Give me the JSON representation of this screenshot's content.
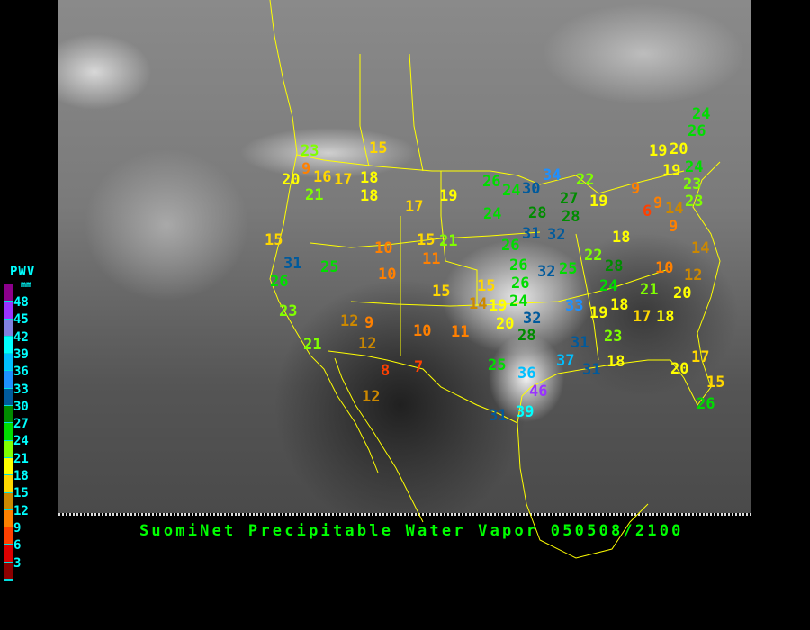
{
  "title": "SuomiNet Precipitable Water Vapor 050508/2100",
  "legend": {
    "title": "PWV",
    "unit": "mm",
    "ticks": [
      "48",
      "45",
      "42",
      "39",
      "36",
      "33",
      "30",
      "27",
      "24",
      "21",
      "18",
      "15",
      "12",
      "9",
      "6",
      "3"
    ],
    "colors_top_to_bottom": [
      "#8c008c",
      "#9933ff",
      "#8080e0",
      "#00ffff",
      "#00bfff",
      "#1e90ff",
      "#005a9c",
      "#008c00",
      "#00dd00",
      "#80ff00",
      "#ffff00",
      "#ffd700",
      "#cc8800",
      "#ff8000",
      "#ff4000",
      "#dd0000",
      "#8c0000"
    ]
  },
  "stations": [
    {
      "value": "23"
    },
    {
      "value": "9"
    },
    {
      "value": "20"
    },
    {
      "value": "16"
    },
    {
      "value": "17"
    },
    {
      "value": "18"
    },
    {
      "value": "18"
    },
    {
      "value": "21"
    },
    {
      "value": "15"
    },
    {
      "value": "17"
    },
    {
      "value": "19"
    },
    {
      "value": "26"
    },
    {
      "value": "24"
    },
    {
      "value": "30"
    },
    {
      "value": "34"
    },
    {
      "value": "22"
    },
    {
      "value": "24"
    },
    {
      "value": "28"
    },
    {
      "value": "27"
    },
    {
      "value": "28"
    },
    {
      "value": "19"
    },
    {
      "value": "15"
    },
    {
      "value": "31"
    },
    {
      "value": "26"
    },
    {
      "value": "25"
    },
    {
      "value": "23"
    },
    {
      "value": "21"
    },
    {
      "value": "10"
    },
    {
      "value": "15"
    },
    {
      "value": "21"
    },
    {
      "value": "11"
    },
    {
      "value": "10"
    },
    {
      "value": "15"
    },
    {
      "value": "12"
    },
    {
      "value": "9"
    },
    {
      "value": "12"
    },
    {
      "value": "10"
    },
    {
      "value": "11"
    },
    {
      "value": "8"
    },
    {
      "value": "7"
    },
    {
      "value": "12"
    },
    {
      "value": "15"
    },
    {
      "value": "14"
    },
    {
      "value": "19"
    },
    {
      "value": "20"
    },
    {
      "value": "32"
    },
    {
      "value": "28"
    },
    {
      "value": "26"
    },
    {
      "value": "26"
    },
    {
      "value": "24"
    },
    {
      "value": "31"
    },
    {
      "value": "32"
    },
    {
      "value": "26"
    },
    {
      "value": "32"
    },
    {
      "value": "25"
    },
    {
      "value": "22"
    },
    {
      "value": "28"
    },
    {
      "value": "33"
    },
    {
      "value": "19"
    },
    {
      "value": "18"
    },
    {
      "value": "24"
    },
    {
      "value": "18"
    },
    {
      "value": "21"
    },
    {
      "value": "10"
    },
    {
      "value": "12"
    },
    {
      "value": "20"
    },
    {
      "value": "14"
    },
    {
      "value": "17"
    },
    {
      "value": "18"
    },
    {
      "value": "23"
    },
    {
      "value": "31"
    },
    {
      "value": "37"
    },
    {
      "value": "31"
    },
    {
      "value": "18"
    },
    {
      "value": "25"
    },
    {
      "value": "36"
    },
    {
      "value": "46"
    },
    {
      "value": "39"
    },
    {
      "value": "31"
    },
    {
      "value": "20"
    },
    {
      "value": "17"
    },
    {
      "value": "15"
    },
    {
      "value": "26"
    },
    {
      "value": "24"
    },
    {
      "value": "26"
    },
    {
      "value": "19"
    },
    {
      "value": "20"
    },
    {
      "value": "19"
    },
    {
      "value": "24"
    },
    {
      "value": "23"
    },
    {
      "value": "23"
    },
    {
      "value": "9"
    },
    {
      "value": "9"
    },
    {
      "value": "6"
    },
    {
      "value": "14"
    },
    {
      "value": "9"
    }
  ]
}
